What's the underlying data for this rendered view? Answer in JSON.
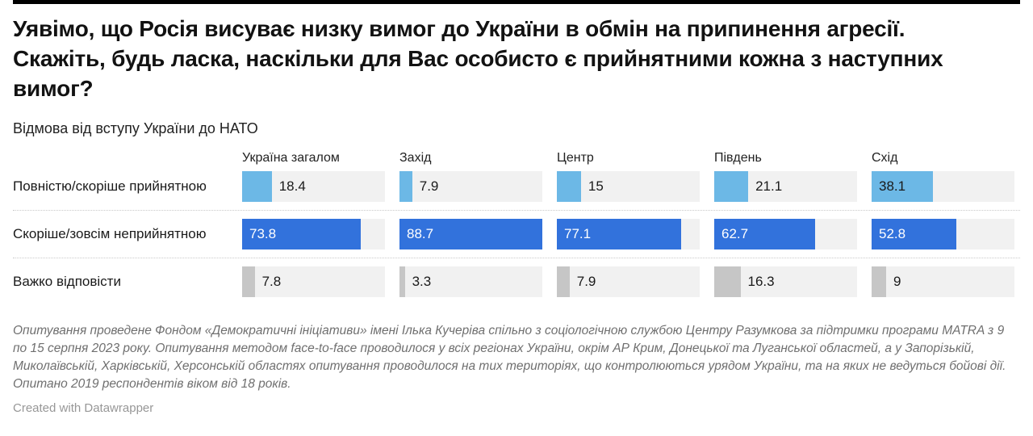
{
  "title": "Уявімо, що Росія висуває низку вимог до України в обмін на припинення агресії. Скажіть, будь ласка, наскільки для Вас особисто є прийнятними кожна з наступних вимог?",
  "subtitle": "Відмова від вступу України до НАТО",
  "table": {
    "columns": [
      "Україна загалом",
      "Захід",
      "Центр",
      "Південь",
      "Схід"
    ],
    "scale_max": 88.7,
    "rows": [
      {
        "label": "Повністю/скоріше прийнятною",
        "values": [
          18.4,
          7.9,
          15,
          21.1,
          38.1
        ],
        "display": [
          "18.4",
          "7.9",
          "15",
          "21.1",
          "38.1"
        ],
        "bar_color": "#6cb8e6",
        "inside_text_color": "#1a1a1a"
      },
      {
        "label": "Скоріше/зовсім неприйнятною",
        "values": [
          73.8,
          88.7,
          77.1,
          62.7,
          52.8
        ],
        "display": [
          "73.8",
          "88.7",
          "77.1",
          "62.7",
          "52.8"
        ],
        "bar_color": "#3272dc",
        "inside_text_color": "#ffffff"
      },
      {
        "label": "Важко відповісти",
        "values": [
          7.8,
          3.3,
          7.9,
          16.3,
          9
        ],
        "display": [
          "7.8",
          "3.3",
          "7.9",
          "16.3",
          "9"
        ],
        "bar_color": "#c6c6c6",
        "inside_text_color": "#1a1a1a"
      }
    ],
    "track_color": "#f1f1f1",
    "outside_text_color": "#1a1a1a"
  },
  "notes": "Опитування проведене Фондом «Демократичні ініціативи» імені Ілька Кучеріва спільно з соціологічною службою Центру Разумкова за підтримки програми MATRA з 9 по 15 серпня 2023 року. Опитування методом face-to-face проводилося у всіх регіонах України, окрім АР Крим, Донецької та Луганської областей, а у Запорізькій, Миколаївській, Харківській, Херсонській областях опитування проводилося на тих територіях, що контролюються урядом України, та на яких не ведуться бойові дії. Опитано 2019 респондентів віком від 18 років.",
  "attribution": "Created with Datawrapper",
  "chart_data": {
    "type": "bar",
    "orientation": "horizontal",
    "title": "Уявімо, що Росія висуває низку вимог до України в обмін на припинення агресії. Скажіть, будь ласка, наскільки для Вас особисто є прийнятними кожна з наступних вимог?",
    "subtitle": "Відмова від вступу України до НАТО",
    "categories": [
      "Україна загалом",
      "Захід",
      "Центр",
      "Південь",
      "Схід"
    ],
    "series": [
      {
        "name": "Повністю/скоріше прийнятною",
        "values": [
          18.4,
          7.9,
          15,
          21.1,
          38.1
        ],
        "color": "#6cb8e6"
      },
      {
        "name": "Скоріше/зовсім неприйнятною",
        "values": [
          73.8,
          88.7,
          77.1,
          62.7,
          52.8
        ],
        "color": "#3272dc"
      },
      {
        "name": "Важко відповісти",
        "values": [
          7.8,
          3.3,
          7.9,
          16.3,
          9
        ],
        "color": "#c6c6c6"
      }
    ],
    "unit": "%",
    "xlim": [
      0,
      88.7
    ],
    "grid": false,
    "legend_position": "none",
    "notes": "Опитування проведене Фондом «Демократичні ініціативи» імені Ілька Кучеріва спільно з соціологічною службою Центру Разумкова за підтримки програми MATRA з 9 по 15 серпня 2023 року. Опитування методом face-to-face проводилося у всіх регіонах України, окрім АР Крим, Донецької та Луганської областей, а у Запорізькій, Миколаївській, Харківській, Херсонській областях опитування проводилося на тих територіях, що контролюються урядом України, та на яких не ведуться бойові дії. Опитано 2019 респондентів віком від 18 років."
  }
}
